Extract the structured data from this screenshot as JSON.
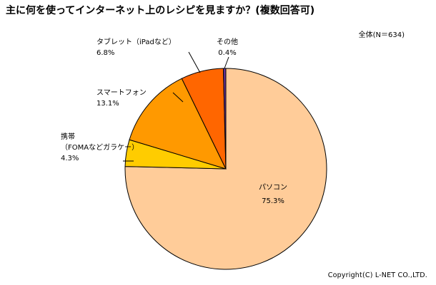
{
  "title": "主に何を使ってインターネット上のレシピを見ますか？(複数回答可)",
  "basis": "全体(N＝634)",
  "copyright": "Copyright(C) L-NET CO.,LTD.",
  "chart_data": {
    "type": "pie",
    "unit": "%",
    "slices": [
      {
        "label": "パソコン",
        "value": 75.3,
        "value_label": "75.3%",
        "color": "#FFCC99"
      },
      {
        "label_lines": [
          "携帯",
          "（FOMAなどガラケー）"
        ],
        "value": 4.3,
        "value_label": "4.3%",
        "color": "#FFCC00"
      },
      {
        "label": "スマートフォン",
        "value": 13.1,
        "value_label": "13.1%",
        "color": "#FF9900"
      },
      {
        "label": "タブレット（iPadなど）",
        "value": 6.8,
        "value_label": "6.8%",
        "color": "#FF6600"
      },
      {
        "label": "その他",
        "value": 0.4,
        "value_label": "0.4%",
        "color": "#663399"
      }
    ]
  }
}
